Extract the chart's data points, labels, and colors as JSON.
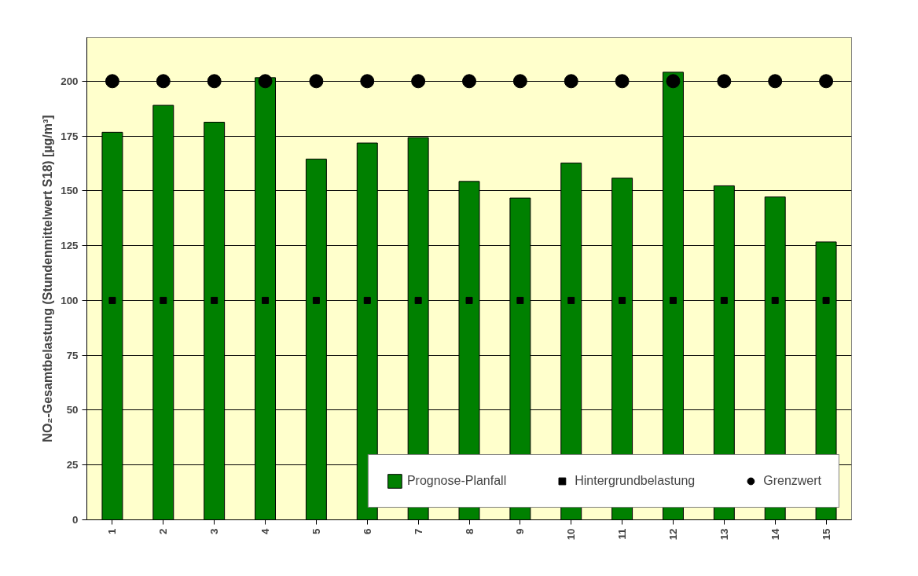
{
  "chart_data": {
    "type": "bar",
    "ylabel": "NO₂-Gesamtbelastung (Stundenmittelwert S18) [µg/m³]",
    "categories": [
      "1",
      "2",
      "3",
      "4",
      "5",
      "6",
      "7",
      "8",
      "9",
      "10",
      "11",
      "12",
      "13",
      "14",
      "15"
    ],
    "series": [
      {
        "name": "Prognose-Planfall",
        "type": "bar",
        "color": "#008000",
        "values": [
          176.7,
          189,
          181.3,
          201.6,
          164.5,
          171.8,
          174.3,
          154.3,
          146.7,
          162.7,
          155.8,
          204.1,
          152.3,
          147.2,
          126.7
        ]
      },
      {
        "name": "Hintergrundbelastung",
        "type": "scatter",
        "marker": "square",
        "color": "#000000",
        "values": [
          100,
          100,
          100,
          100,
          100,
          100,
          100,
          100,
          100,
          100,
          100,
          100,
          100,
          100,
          100
        ]
      },
      {
        "name": "Grenzwert",
        "type": "scatter",
        "marker": "circle",
        "color": "#000000",
        "values": [
          200,
          200,
          200,
          200,
          200,
          200,
          200,
          200,
          200,
          200,
          200,
          200,
          200,
          200,
          200
        ]
      }
    ],
    "ylim": [
      0,
      220
    ],
    "yticks": [
      0,
      25,
      50,
      75,
      100,
      125,
      150,
      175,
      200
    ],
    "grid": "y",
    "legend": "bottom right"
  }
}
